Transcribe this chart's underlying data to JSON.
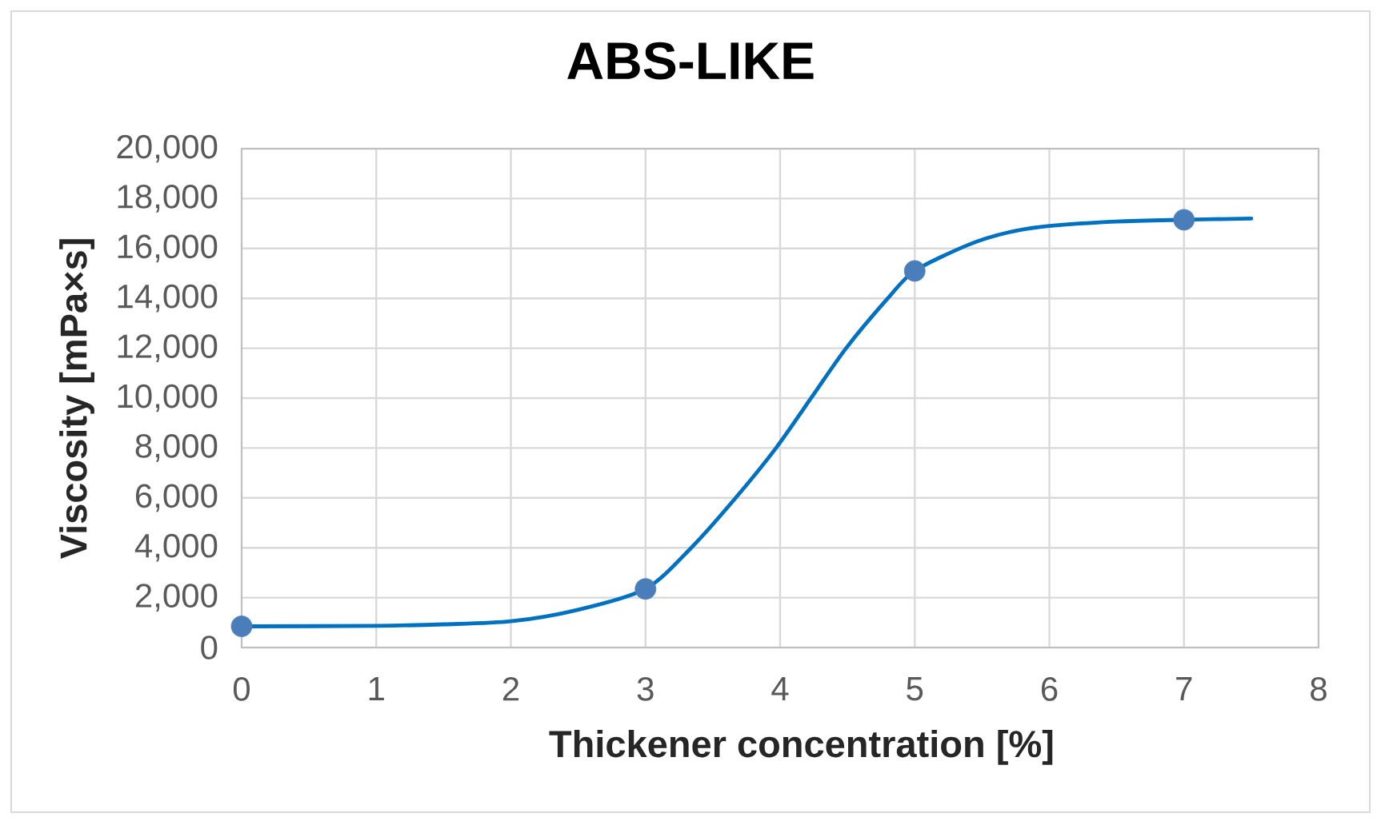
{
  "chart_data": {
    "type": "line",
    "title": "ABS-LIKE",
    "xlabel": "Thickener concentration [%]",
    "ylabel": "Viscosity [mPa×s]",
    "xlim": [
      0,
      8
    ],
    "xticks": [
      0,
      1,
      2,
      3,
      4,
      5,
      6,
      7,
      8
    ],
    "ylim": [
      0,
      20000
    ],
    "yticks": [
      0,
      {
        "value": 2000,
        "label": "2,000"
      },
      {
        "value": 4000,
        "label": "4,000"
      },
      {
        "value": 6000,
        "label": "6,000"
      },
      {
        "value": 8000,
        "label": "8,000"
      },
      {
        "value": 10000,
        "label": "10,000"
      },
      {
        "value": 12000,
        "label": "12,000"
      },
      {
        "value": 14000,
        "label": "14,000"
      },
      {
        "value": 16000,
        "label": "16,000"
      },
      {
        "value": 18000,
        "label": "18,000"
      },
      {
        "value": 20000,
        "label": "20,000"
      }
    ],
    "grid": true,
    "series": [
      {
        "color": "#0070c0",
        "marker": "none",
        "line_style": "solid",
        "x": [
          0,
          1,
          1.5,
          2,
          2.49,
          3,
          3.34,
          3.67,
          3.97,
          4.23,
          4.49,
          4.8,
          5,
          5.4,
          5.7,
          6,
          6.5,
          7,
          7.5
        ],
        "values": [
          850,
          870,
          930,
          1050,
          1500,
          2350,
          4000,
          6000,
          8000,
          10000,
          12000,
          14000,
          15100,
          16150,
          16650,
          16900,
          17080,
          17150,
          17200
        ]
      },
      {
        "type": "scatter",
        "color": "#4a7ebb",
        "marker": "circle",
        "x": [
          0,
          3,
          5,
          7
        ],
        "values": [
          850,
          2350,
          15100,
          17150
        ]
      }
    ]
  }
}
